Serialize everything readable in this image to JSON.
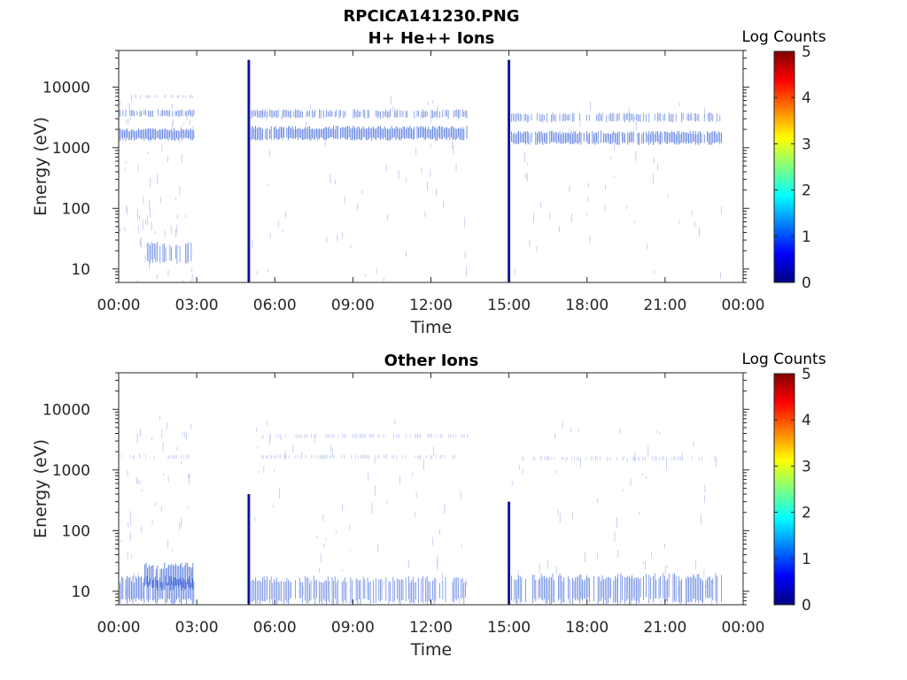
{
  "figure": {
    "title_line1": "RPCICA141230.PNG"
  },
  "colors": {
    "axis": "#262626",
    "dense_band": "#0a1fb0",
    "band": "#3d66d9",
    "sparse": "#8fa0e8",
    "colormap": [
      "#00007f",
      "#0000ff",
      "#007fff",
      "#00ffff",
      "#7fff7f",
      "#ffff00",
      "#ff7f00",
      "#ff0000",
      "#7f0000"
    ]
  },
  "chart_data": [
    {
      "type": "heatmap",
      "title": "H+ He++ Ions",
      "xlabel": "Time",
      "ylabel": "Energy (eV)",
      "y_scale": "log",
      "ylim": [
        6,
        40000
      ],
      "xlim_hours": [
        0,
        24
      ],
      "x_ticks": [
        "00:00",
        "03:00",
        "06:00",
        "09:00",
        "12:00",
        "15:00",
        "18:00",
        "21:00",
        "00:00"
      ],
      "y_ticks": [
        "10",
        "100",
        "1000",
        "10000"
      ],
      "colorbar": {
        "label": "Log Counts",
        "range": [
          0,
          5
        ],
        "ticks": [
          "0",
          "1",
          "2",
          "3",
          "4",
          "5"
        ]
      },
      "bands": [
        {
          "t_start": 0.0,
          "t_end": 2.9,
          "e_low": 1300,
          "e_high": 2100,
          "level": 1.0
        },
        {
          "t_start": 0.0,
          "t_end": 2.9,
          "e_low": 3200,
          "e_high": 4300,
          "level": 0.6
        },
        {
          "t_start": 0.4,
          "t_end": 2.9,
          "e_low": 6500,
          "e_high": 7500,
          "level": 0.3
        },
        {
          "t_start": 1.1,
          "t_end": 2.8,
          "e_low": 12,
          "e_high": 28,
          "level": 0.6
        },
        {
          "t_start": 5.1,
          "t_end": 13.4,
          "e_low": 1300,
          "e_high": 2300,
          "level": 1.0
        },
        {
          "t_start": 5.1,
          "t_end": 13.4,
          "e_low": 3000,
          "e_high": 4300,
          "level": 0.6
        },
        {
          "t_start": 15.1,
          "t_end": 23.2,
          "e_low": 1100,
          "e_high": 1900,
          "level": 0.9
        },
        {
          "t_start": 15.1,
          "t_end": 23.2,
          "e_low": 2600,
          "e_high": 3800,
          "level": 0.5
        }
      ],
      "spikes": [
        {
          "t": 5.0,
          "e_low": 6,
          "e_high": 28000,
          "level": 1.5
        },
        {
          "t": 15.0,
          "e_low": 6,
          "e_high": 28000,
          "level": 1.5
        }
      ]
    },
    {
      "type": "heatmap",
      "title": "Other Ions",
      "xlabel": "Time",
      "ylabel": "Energy (eV)",
      "y_scale": "log",
      "ylim": [
        6,
        40000
      ],
      "xlim_hours": [
        0,
        24
      ],
      "x_ticks": [
        "00:00",
        "03:00",
        "06:00",
        "09:00",
        "12:00",
        "15:00",
        "18:00",
        "21:00",
        "00:00"
      ],
      "y_ticks": [
        "10",
        "100",
        "1000",
        "10000"
      ],
      "colorbar": {
        "label": "Log Counts",
        "range": [
          0,
          5
        ],
        "ticks": [
          "0",
          "1",
          "2",
          "3",
          "4",
          "5"
        ]
      },
      "bands": [
        {
          "t_start": 0.0,
          "t_end": 2.9,
          "e_low": 6,
          "e_high": 18,
          "level": 0.9
        },
        {
          "t_start": 1.0,
          "t_end": 2.9,
          "e_low": 10,
          "e_high": 30,
          "level": 1.0
        },
        {
          "t_start": 5.1,
          "t_end": 13.4,
          "e_low": 6,
          "e_high": 18,
          "level": 0.6
        },
        {
          "t_start": 15.1,
          "t_end": 23.2,
          "e_low": 6,
          "e_high": 20,
          "level": 0.7
        },
        {
          "t_start": 0.0,
          "t_end": 2.7,
          "e_low": 1500,
          "e_high": 1800,
          "level": 0.2
        },
        {
          "t_start": 5.5,
          "t_end": 13.0,
          "e_low": 1500,
          "e_high": 1800,
          "level": 0.2
        },
        {
          "t_start": 5.5,
          "t_end": 13.4,
          "e_low": 3300,
          "e_high": 4000,
          "level": 0.15
        },
        {
          "t_start": 15.5,
          "t_end": 23.0,
          "e_low": 1400,
          "e_high": 1700,
          "level": 0.15
        }
      ],
      "spikes": [
        {
          "t": 5.0,
          "e_low": 6,
          "e_high": 400,
          "level": 1.2
        },
        {
          "t": 15.0,
          "e_low": 6,
          "e_high": 300,
          "level": 1.2
        }
      ]
    }
  ]
}
